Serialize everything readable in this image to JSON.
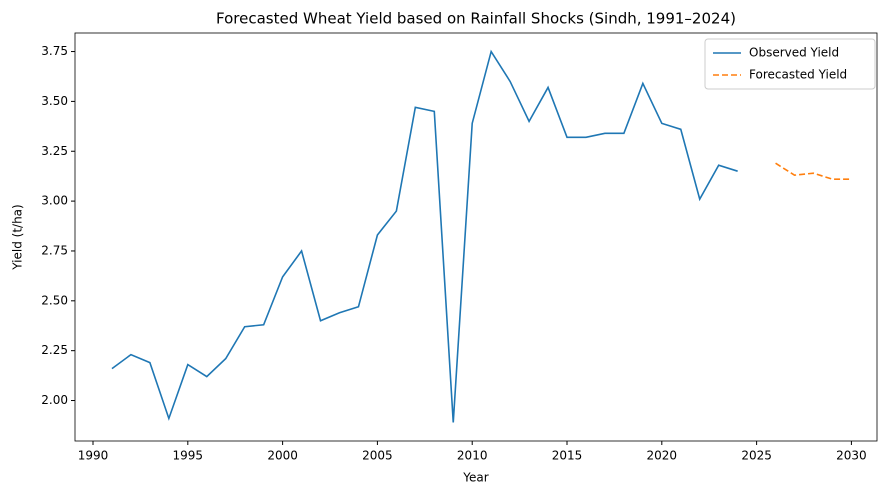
{
  "chart_data": {
    "type": "line",
    "title": "Forecasted Wheat Yield based on Rainfall Shocks (Sindh, 1991–2024)",
    "x_label": "Year",
    "y_label": "Yield (t/ha)",
    "series": [
      {
        "name": "Observed Yield",
        "color": "#1f77b4",
        "dash": "solid",
        "x": [
          1991,
          1992,
          1993,
          1994,
          1995,
          1996,
          1997,
          1998,
          1999,
          2000,
          2001,
          2002,
          2003,
          2004,
          2005,
          2006,
          2007,
          2008,
          2009,
          2010,
          2011,
          2012,
          2013,
          2014,
          2015,
          2016,
          2017,
          2018,
          2019,
          2020,
          2021,
          2022,
          2023,
          2024
        ],
        "values": [
          2.16,
          2.23,
          2.19,
          1.91,
          2.18,
          2.12,
          2.21,
          2.37,
          2.38,
          2.62,
          2.75,
          2.4,
          2.44,
          2.47,
          2.83,
          2.95,
          3.47,
          3.45,
          1.89,
          3.39,
          3.75,
          3.6,
          3.4,
          3.57,
          3.32,
          3.32,
          3.34,
          3.34,
          3.59,
          3.39,
          3.36,
          3.01,
          3.18,
          3.15
        ]
      },
      {
        "name": "Forecasted Yield",
        "color": "#ff7f0e",
        "dash": "dashed",
        "x": [
          2026,
          2027,
          2028,
          2029,
          2030
        ],
        "values": [
          3.19,
          3.13,
          3.14,
          3.11,
          3.11
        ]
      }
    ],
    "xlim": [
      1989.05,
      2031.35
    ],
    "ylim": [
      1.797,
      3.843
    ],
    "xticks": [
      1990,
      1995,
      2000,
      2005,
      2010,
      2015,
      2020,
      2025,
      2030
    ],
    "yticks": [
      {
        "value": 2,
        "label": "2.00"
      },
      {
        "value": 2.25,
        "label": "2.25"
      },
      {
        "value": 2.5,
        "label": "2.50"
      },
      {
        "value": 2.75,
        "label": "2.75"
      },
      {
        "value": 3,
        "label": "3.00"
      },
      {
        "value": 3.25,
        "label": "3.25"
      },
      {
        "value": 3.5,
        "label": "3.50"
      },
      {
        "value": 3.75,
        "label": "3.75"
      }
    ],
    "grid": false,
    "legend": "upper right"
  }
}
